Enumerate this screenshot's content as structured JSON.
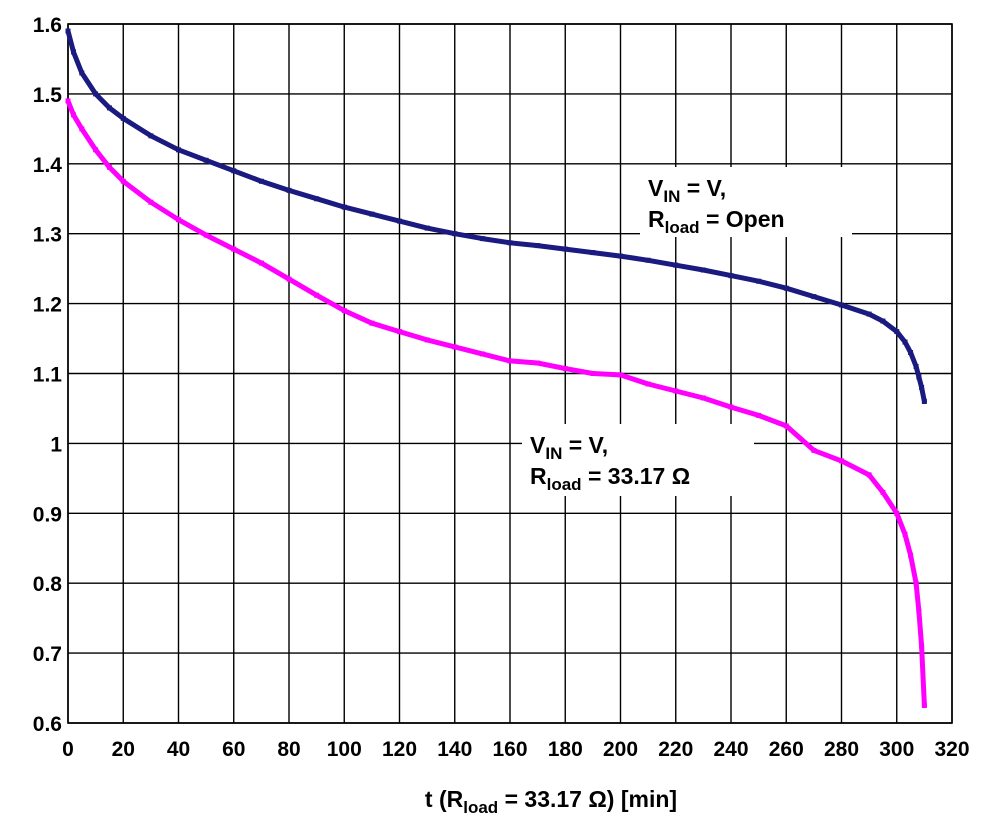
{
  "chart_data": {
    "type": "line",
    "title": "",
    "xlabel": {
      "prefix": "t (R",
      "sub": "load",
      "suffix": " = 33.17 Ω) [min]"
    },
    "ylabel": "",
    "xlim": [
      0,
      320
    ],
    "ylim": [
      0.6,
      1.6
    ],
    "x_ticks": [
      "0",
      "20",
      "40",
      "60",
      "80",
      "100",
      "120",
      "140",
      "160",
      "180",
      "200",
      "220",
      "240",
      "260",
      "280",
      "300",
      "320"
    ],
    "y_ticks": [
      "0.6",
      "0.7",
      "0.8",
      "0.9",
      "1",
      "1.1",
      "1.2",
      "1.3",
      "1.4",
      "1.5",
      "1.6"
    ],
    "grid": true,
    "series": [
      {
        "color": "#1a1a80",
        "x": [
          0,
          2,
          5,
          10,
          15,
          20,
          30,
          40,
          50,
          60,
          70,
          80,
          90,
          100,
          110,
          120,
          130,
          140,
          150,
          160,
          170,
          180,
          190,
          200,
          210,
          220,
          230,
          240,
          250,
          260,
          270,
          280,
          290,
          295,
          300,
          303,
          305,
          307,
          308,
          309,
          310
        ],
        "y": [
          1.59,
          1.56,
          1.53,
          1.5,
          1.48,
          1.465,
          1.44,
          1.42,
          1.405,
          1.39,
          1.375,
          1.362,
          1.35,
          1.338,
          1.328,
          1.318,
          1.308,
          1.3,
          1.293,
          1.287,
          1.283,
          1.278,
          1.273,
          1.268,
          1.262,
          1.255,
          1.248,
          1.24,
          1.232,
          1.222,
          1.21,
          1.198,
          1.185,
          1.175,
          1.16,
          1.145,
          1.13,
          1.11,
          1.095,
          1.08,
          1.06
        ]
      },
      {
        "color": "#ff00ff",
        "x": [
          0,
          2,
          5,
          10,
          15,
          20,
          30,
          40,
          50,
          60,
          70,
          80,
          90,
          100,
          110,
          120,
          130,
          140,
          150,
          160,
          170,
          180,
          190,
          200,
          210,
          220,
          230,
          240,
          250,
          260,
          270,
          280,
          290,
          295,
          300,
          303,
          305,
          307,
          308,
          309,
          310
        ],
        "y": [
          1.49,
          1.47,
          1.45,
          1.42,
          1.395,
          1.375,
          1.345,
          1.32,
          1.298,
          1.278,
          1.258,
          1.235,
          1.212,
          1.19,
          1.172,
          1.16,
          1.148,
          1.138,
          1.128,
          1.118,
          1.115,
          1.107,
          1.1,
          1.098,
          1.085,
          1.075,
          1.065,
          1.052,
          1.04,
          1.025,
          0.99,
          0.975,
          0.955,
          0.93,
          0.9,
          0.87,
          0.84,
          0.8,
          0.76,
          0.71,
          0.625
        ]
      }
    ],
    "annotations": [
      {
        "lines": [
          {
            "main": "V",
            "sub": "IN",
            "rest": " = V,"
          },
          {
            "main": "R",
            "sub": "load",
            "rest": " = Open"
          }
        ]
      },
      {
        "lines": [
          {
            "main": "V",
            "sub": "IN",
            "rest": " = V,"
          },
          {
            "main": "R",
            "sub": "load",
            "rest": " = 33.17 Ω"
          }
        ]
      }
    ]
  }
}
